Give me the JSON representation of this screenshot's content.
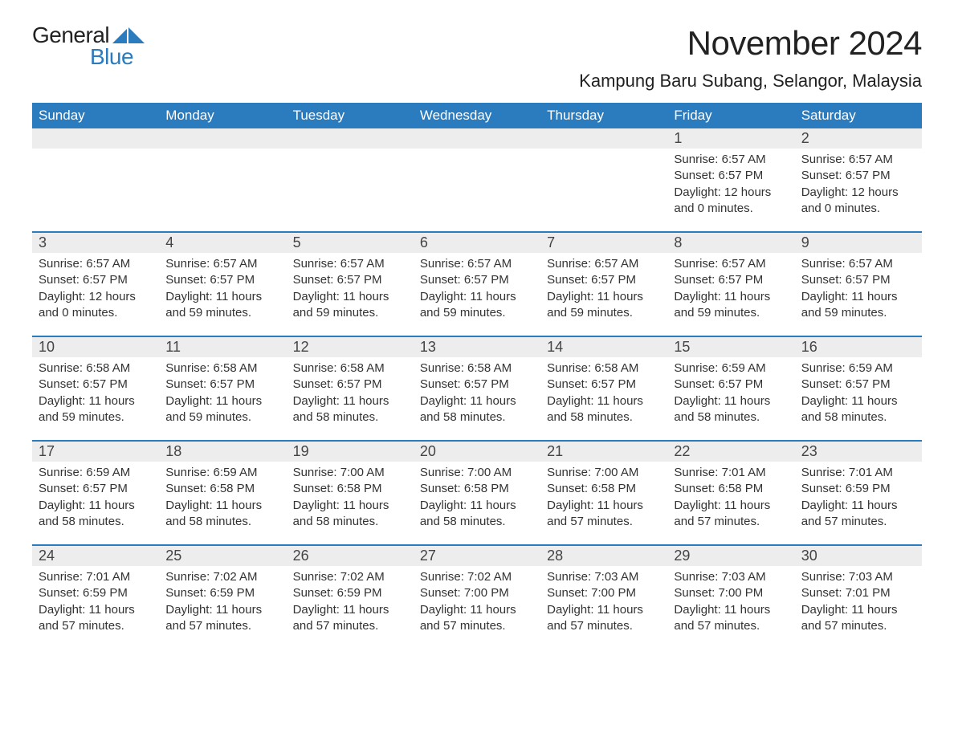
{
  "brand": {
    "text1": "General",
    "text2": "Blue",
    "text1_color": "#222222",
    "text2_color": "#2b7bbf",
    "triangle_color": "#2b7bbf"
  },
  "title": {
    "month_year": "November 2024",
    "location": "Kampung Baru Subang, Selangor, Malaysia",
    "month_fontsize": 42,
    "location_fontsize": 22
  },
  "colors": {
    "header_bg": "#2b7bbf",
    "header_text": "#ffffff",
    "daynum_bg": "#ededed",
    "row_divider": "#2b7bbf",
    "body_text": "#333333",
    "background": "#ffffff"
  },
  "layout": {
    "columns": 7,
    "rows": 5,
    "first_day_column_index": 5
  },
  "weekdays": [
    "Sunday",
    "Monday",
    "Tuesday",
    "Wednesday",
    "Thursday",
    "Friday",
    "Saturday"
  ],
  "days": [
    {
      "n": 1,
      "sunrise": "6:57 AM",
      "sunset": "6:57 PM",
      "daylight": "12 hours and 0 minutes."
    },
    {
      "n": 2,
      "sunrise": "6:57 AM",
      "sunset": "6:57 PM",
      "daylight": "12 hours and 0 minutes."
    },
    {
      "n": 3,
      "sunrise": "6:57 AM",
      "sunset": "6:57 PM",
      "daylight": "12 hours and 0 minutes."
    },
    {
      "n": 4,
      "sunrise": "6:57 AM",
      "sunset": "6:57 PM",
      "daylight": "11 hours and 59 minutes."
    },
    {
      "n": 5,
      "sunrise": "6:57 AM",
      "sunset": "6:57 PM",
      "daylight": "11 hours and 59 minutes."
    },
    {
      "n": 6,
      "sunrise": "6:57 AM",
      "sunset": "6:57 PM",
      "daylight": "11 hours and 59 minutes."
    },
    {
      "n": 7,
      "sunrise": "6:57 AM",
      "sunset": "6:57 PM",
      "daylight": "11 hours and 59 minutes."
    },
    {
      "n": 8,
      "sunrise": "6:57 AM",
      "sunset": "6:57 PM",
      "daylight": "11 hours and 59 minutes."
    },
    {
      "n": 9,
      "sunrise": "6:57 AM",
      "sunset": "6:57 PM",
      "daylight": "11 hours and 59 minutes."
    },
    {
      "n": 10,
      "sunrise": "6:58 AM",
      "sunset": "6:57 PM",
      "daylight": "11 hours and 59 minutes."
    },
    {
      "n": 11,
      "sunrise": "6:58 AM",
      "sunset": "6:57 PM",
      "daylight": "11 hours and 59 minutes."
    },
    {
      "n": 12,
      "sunrise": "6:58 AM",
      "sunset": "6:57 PM",
      "daylight": "11 hours and 58 minutes."
    },
    {
      "n": 13,
      "sunrise": "6:58 AM",
      "sunset": "6:57 PM",
      "daylight": "11 hours and 58 minutes."
    },
    {
      "n": 14,
      "sunrise": "6:58 AM",
      "sunset": "6:57 PM",
      "daylight": "11 hours and 58 minutes."
    },
    {
      "n": 15,
      "sunrise": "6:59 AM",
      "sunset": "6:57 PM",
      "daylight": "11 hours and 58 minutes."
    },
    {
      "n": 16,
      "sunrise": "6:59 AM",
      "sunset": "6:57 PM",
      "daylight": "11 hours and 58 minutes."
    },
    {
      "n": 17,
      "sunrise": "6:59 AM",
      "sunset": "6:57 PM",
      "daylight": "11 hours and 58 minutes."
    },
    {
      "n": 18,
      "sunrise": "6:59 AM",
      "sunset": "6:58 PM",
      "daylight": "11 hours and 58 minutes."
    },
    {
      "n": 19,
      "sunrise": "7:00 AM",
      "sunset": "6:58 PM",
      "daylight": "11 hours and 58 minutes."
    },
    {
      "n": 20,
      "sunrise": "7:00 AM",
      "sunset": "6:58 PM",
      "daylight": "11 hours and 58 minutes."
    },
    {
      "n": 21,
      "sunrise": "7:00 AM",
      "sunset": "6:58 PM",
      "daylight": "11 hours and 57 minutes."
    },
    {
      "n": 22,
      "sunrise": "7:01 AM",
      "sunset": "6:58 PM",
      "daylight": "11 hours and 57 minutes."
    },
    {
      "n": 23,
      "sunrise": "7:01 AM",
      "sunset": "6:59 PM",
      "daylight": "11 hours and 57 minutes."
    },
    {
      "n": 24,
      "sunrise": "7:01 AM",
      "sunset": "6:59 PM",
      "daylight": "11 hours and 57 minutes."
    },
    {
      "n": 25,
      "sunrise": "7:02 AM",
      "sunset": "6:59 PM",
      "daylight": "11 hours and 57 minutes."
    },
    {
      "n": 26,
      "sunrise": "7:02 AM",
      "sunset": "6:59 PM",
      "daylight": "11 hours and 57 minutes."
    },
    {
      "n": 27,
      "sunrise": "7:02 AM",
      "sunset": "7:00 PM",
      "daylight": "11 hours and 57 minutes."
    },
    {
      "n": 28,
      "sunrise": "7:03 AM",
      "sunset": "7:00 PM",
      "daylight": "11 hours and 57 minutes."
    },
    {
      "n": 29,
      "sunrise": "7:03 AM",
      "sunset": "7:00 PM",
      "daylight": "11 hours and 57 minutes."
    },
    {
      "n": 30,
      "sunrise": "7:03 AM",
      "sunset": "7:01 PM",
      "daylight": "11 hours and 57 minutes."
    }
  ],
  "labels": {
    "sunrise_prefix": "Sunrise: ",
    "sunset_prefix": "Sunset: ",
    "daylight_prefix": "Daylight: "
  }
}
